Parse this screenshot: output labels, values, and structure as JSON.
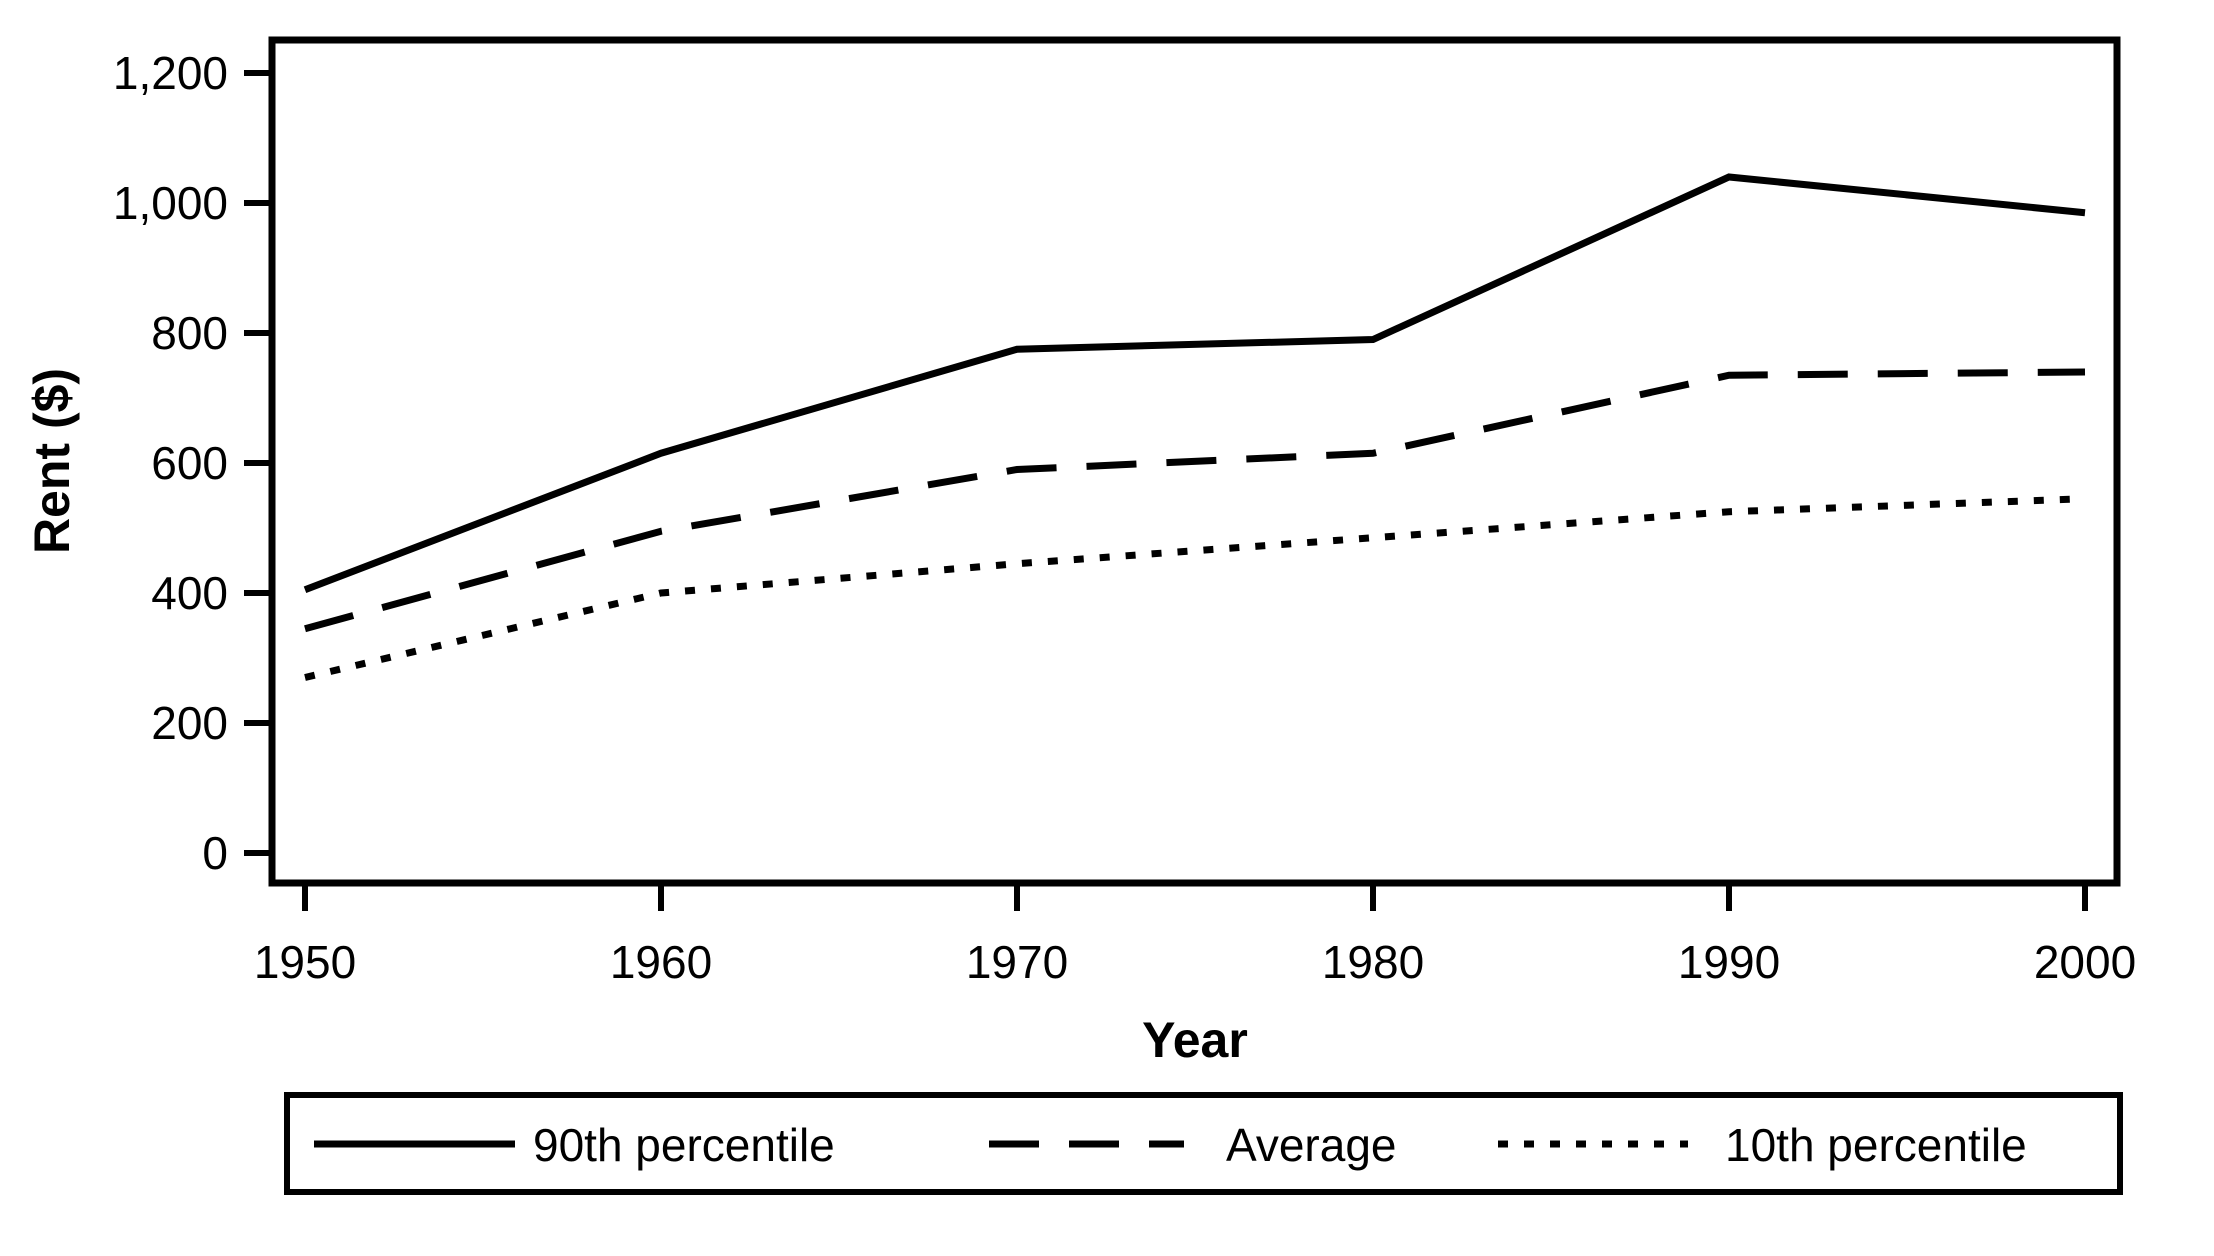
{
  "chart_data": {
    "type": "line",
    "title": "",
    "xlabel": "Year",
    "ylabel": "Rent ($)",
    "x": [
      1950,
      1960,
      1970,
      1980,
      1990,
      2000
    ],
    "series": [
      {
        "name": "90th percentile",
        "style": "solid",
        "values": [
          405,
          615,
          775,
          790,
          1040,
          985
        ]
      },
      {
        "name": "Average",
        "style": "dashed",
        "values": [
          345,
          495,
          590,
          615,
          735,
          740
        ]
      },
      {
        "name": "10th percentile",
        "style": "dotted",
        "values": [
          270,
          400,
          445,
          485,
          525,
          545
        ]
      }
    ],
    "xlim": [
      1950,
      2000
    ],
    "ylim": [
      0,
      1200
    ],
    "x_ticks": [
      1950,
      1960,
      1970,
      1980,
      1990,
      2000
    ],
    "x_tick_labels": [
      "1950",
      "1960",
      "1970",
      "1980",
      "1990",
      "2000"
    ],
    "y_ticks": [
      0,
      200,
      400,
      600,
      800,
      1000,
      1200
    ],
    "y_tick_labels": [
      "0",
      "200",
      "400",
      "600",
      "800",
      "1,000",
      "1,200"
    ],
    "grid": false,
    "legend_position": "bottom",
    "line_color": "#000000",
    "background_color": "#ffffff"
  },
  "legend": {
    "entries": [
      {
        "label": "90th percentile",
        "style": "solid"
      },
      {
        "label": "Average",
        "style": "dashed"
      },
      {
        "label": "10th percentile",
        "style": "dotted"
      }
    ]
  }
}
